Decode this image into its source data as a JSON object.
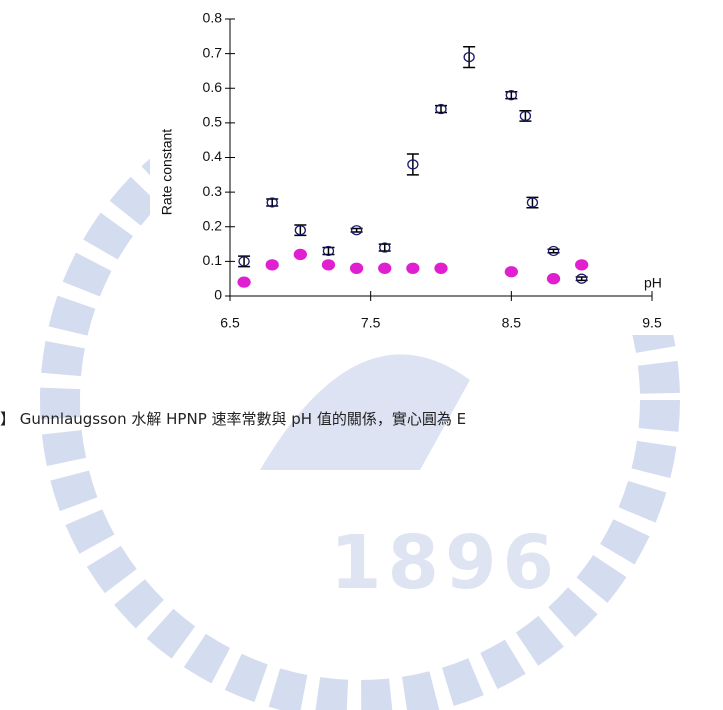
{
  "chart_data": {
    "type": "scatter",
    "x_label": "pH",
    "y_label": "Rate constant",
    "xlim": [
      6.5,
      9.5
    ],
    "xticks": [
      6.5,
      7.5,
      8.5,
      9.5
    ],
    "ylim": [
      0,
      0.8
    ],
    "yticks": [
      0,
      0.1,
      0.2,
      0.3,
      0.4,
      0.5,
      0.6,
      0.7,
      0.8
    ],
    "series": [
      {
        "color": "#1a1a6e",
        "marker": "open",
        "x": [
          6.6,
          6.8,
          7.0,
          7.2,
          7.4,
          7.6,
          7.8,
          8.0,
          8.2,
          8.5,
          8.6,
          8.65,
          8.8,
          9.0
        ],
        "values": [
          0.1,
          0.27,
          0.19,
          0.13,
          0.19,
          0.14,
          0.38,
          0.54,
          0.69,
          0.58,
          0.52,
          0.27,
          0.13,
          0.05
        ],
        "errors": [
          0.015,
          0.01,
          0.015,
          0.01,
          0.005,
          0.01,
          0.03,
          0.01,
          0.03,
          0.01,
          0.015,
          0.015,
          0.005,
          0.005
        ]
      },
      {
        "color": "#e020d0",
        "marker": "solid",
        "x": [
          6.6,
          6.8,
          7.0,
          7.2,
          7.4,
          7.6,
          7.8,
          8.0,
          8.5,
          8.8,
          9.0
        ],
        "values": [
          0.04,
          0.09,
          0.12,
          0.09,
          0.08,
          0.08,
          0.08,
          0.08,
          0.07,
          0.05,
          0.09
        ]
      }
    ]
  },
  "caption": "】 Gunnlaugsson 水解 HPNP 速率常數與 pH 值的關係，實心圓為 E",
  "watermark": "1896"
}
